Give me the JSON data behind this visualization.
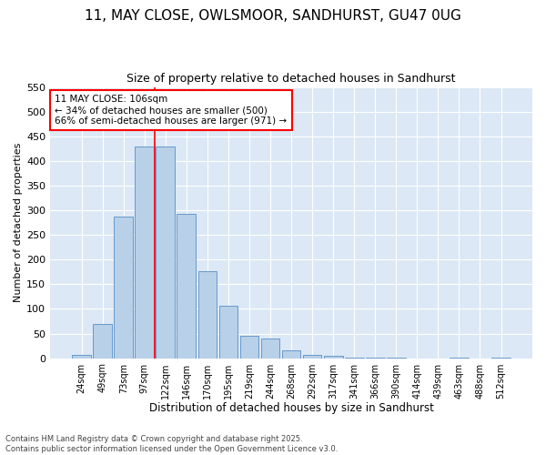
{
  "title_line1": "11, MAY CLOSE, OWLSMOOR, SANDHURST, GU47 0UG",
  "title_line2": "Size of property relative to detached houses in Sandhurst",
  "xlabel": "Distribution of detached houses by size in Sandhurst",
  "ylabel": "Number of detached properties",
  "categories": [
    "24sqm",
    "49sqm",
    "73sqm",
    "97sqm",
    "122sqm",
    "146sqm",
    "170sqm",
    "195sqm",
    "219sqm",
    "244sqm",
    "268sqm",
    "292sqm",
    "317sqm",
    "341sqm",
    "366sqm",
    "390sqm",
    "414sqm",
    "439sqm",
    "463sqm",
    "488sqm",
    "512sqm"
  ],
  "values": [
    7,
    70,
    288,
    430,
    430,
    293,
    176,
    106,
    45,
    40,
    16,
    7,
    4,
    1,
    1,
    1,
    0,
    0,
    1,
    0,
    1
  ],
  "bar_color": "#b8d0e8",
  "bar_edge_color": "#6699cc",
  "vline_x": 3.5,
  "vline_color": "red",
  "annotation_title": "11 MAY CLOSE: 106sqm",
  "annotation_line1": "← 34% of detached houses are smaller (500)",
  "annotation_line2": "66% of semi-detached houses are larger (971) →",
  "annotation_box_color": "white",
  "annotation_box_edge": "red",
  "ylim": [
    0,
    550
  ],
  "yticks": [
    0,
    50,
    100,
    150,
    200,
    250,
    300,
    350,
    400,
    450,
    500,
    550
  ],
  "footer_line1": "Contains HM Land Registry data © Crown copyright and database right 2025.",
  "footer_line2": "Contains public sector information licensed under the Open Government Licence v3.0.",
  "fig_bg_color": "#ffffff",
  "plot_bg_color": "#dce8f5"
}
